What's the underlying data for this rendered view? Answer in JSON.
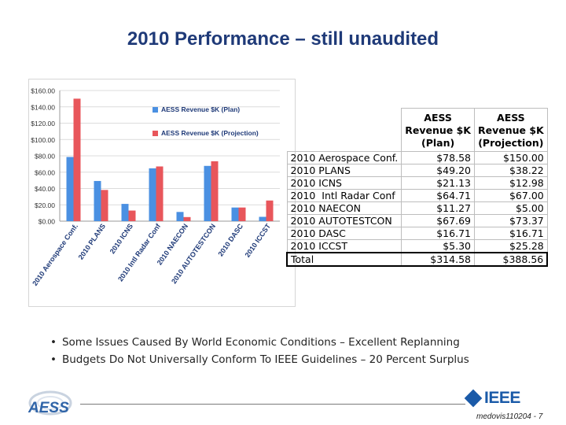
{
  "slide": {
    "title": "2010 Performance – still unaudited",
    "bullets": [
      "Some Issues Caused By World Economic Conditions – Excellent Replanning",
      "Budgets Do Not Universally Conform To IEEE Guidelines – 20 Percent Surplus"
    ],
    "footer_ref": "medovis110204 - 7",
    "logo_left_text": "AESS",
    "logo_right_text": "IEEE"
  },
  "colors": {
    "title": "#1f3a78",
    "plan": "#4a90e2",
    "projection": "#e8565b",
    "ieee": "#1a5aa8"
  },
  "chart_data": {
    "type": "bar",
    "title": "",
    "xlabel": "",
    "ylabel": "",
    "ylim": [
      0,
      160
    ],
    "yticks": [
      "$0.00",
      "$20.00",
      "$40.00",
      "$60.00",
      "$80.00",
      "$100.00",
      "$120.00",
      "$140.00",
      "$160.00"
    ],
    "ytick_values": [
      0,
      20,
      40,
      60,
      80,
      100,
      120,
      140,
      160
    ],
    "legend_position": "top-right",
    "categories": [
      "2010 Aerospace Conf.",
      "2010 PLANS",
      "2010 ICNS",
      "2010  Intl Radar Conf",
      "2010 NAECON",
      "2010 AUTOTESTCON",
      "2010 DASC",
      "2010 ICCST"
    ],
    "series": [
      {
        "name": "AESS Revenue $K (Plan)",
        "values": [
          78.58,
          49.2,
          21.13,
          64.71,
          11.27,
          67.69,
          16.71,
          5.3
        ]
      },
      {
        "name": "AESS Revenue $K (Projection)",
        "values": [
          150.0,
          38.22,
          12.98,
          67.0,
          5.0,
          73.37,
          16.71,
          25.28
        ]
      }
    ]
  },
  "table": {
    "headers": [
      "",
      "AESS Revenue $K (Plan)",
      "AESS Revenue $K (Projection)"
    ],
    "header_lines": [
      [
        "AESS",
        "Revenue $K",
        "(Plan)"
      ],
      [
        "AESS",
        "Revenue $K",
        "(Projection)"
      ]
    ],
    "rows": [
      [
        "2010 Aerospace Conf.",
        "$78.58",
        "$150.00"
      ],
      [
        "2010 PLANS",
        "$49.20",
        "$38.22"
      ],
      [
        "2010 ICNS",
        "$21.13",
        "$12.98"
      ],
      [
        "2010  Intl Radar Conf",
        "$64.71",
        "$67.00"
      ],
      [
        "2010 NAECON",
        "$11.27",
        "$5.00"
      ],
      [
        "2010 AUTOTESTCON",
        "$67.69",
        "$73.37"
      ],
      [
        "2010 DASC",
        "$16.71",
        "$16.71"
      ],
      [
        "2010 ICCST",
        "$5.30",
        "$25.28"
      ]
    ],
    "total": [
      "Total",
      "$314.58",
      "$388.56"
    ]
  }
}
